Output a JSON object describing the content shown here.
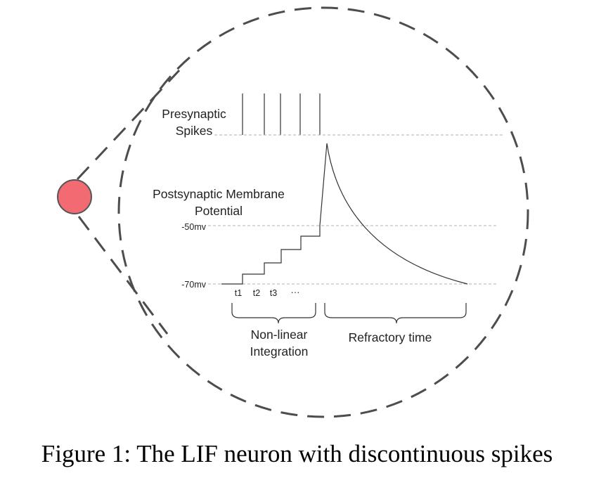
{
  "labels": {
    "presynaptic_line1": "Presynaptic",
    "presynaptic_line2": "Spikes",
    "postsynaptic_line1": "Postsynaptic Membrane",
    "postsynaptic_line2": "Potential",
    "threshold": "-50mv",
    "rest": "-70mv",
    "t1": "t1",
    "t2": "t2",
    "t3": "t3",
    "ellipsis": "···",
    "integration_line1": "Non-linear",
    "integration_line2": "Integration",
    "refractory": "Refractory time"
  },
  "caption": "Figure 1: The LIF neuron with discontinuous spikes",
  "colors": {
    "neuron_fill": "#f26b73",
    "neuron_stroke": "#555555",
    "dashed_stroke": "#4d4d4d",
    "guide_line": "#b0b0b0",
    "trace": "#333333"
  }
}
